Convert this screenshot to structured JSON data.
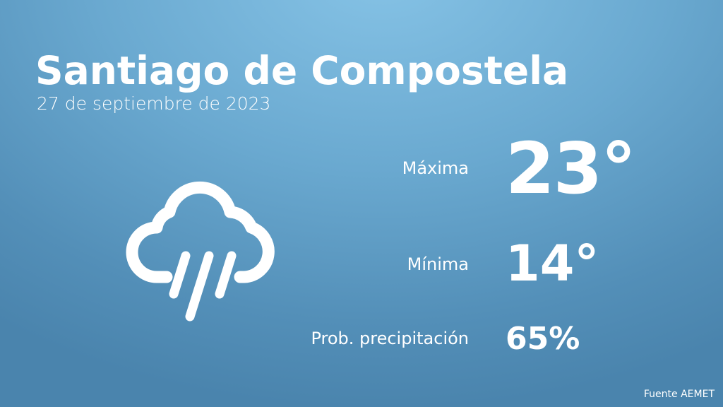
{
  "title": "Santiago de Compostela",
  "date": "27 de septiembre de 2023",
  "weather_icon": "rain-cloud-icon",
  "stats": {
    "max": {
      "label": "Máxima",
      "value": "23°"
    },
    "min": {
      "label": "Mínima",
      "value": "14°"
    },
    "precip": {
      "label": "Prob. precipitación",
      "value": "65%"
    }
  },
  "source": "Fuente AEMET"
}
